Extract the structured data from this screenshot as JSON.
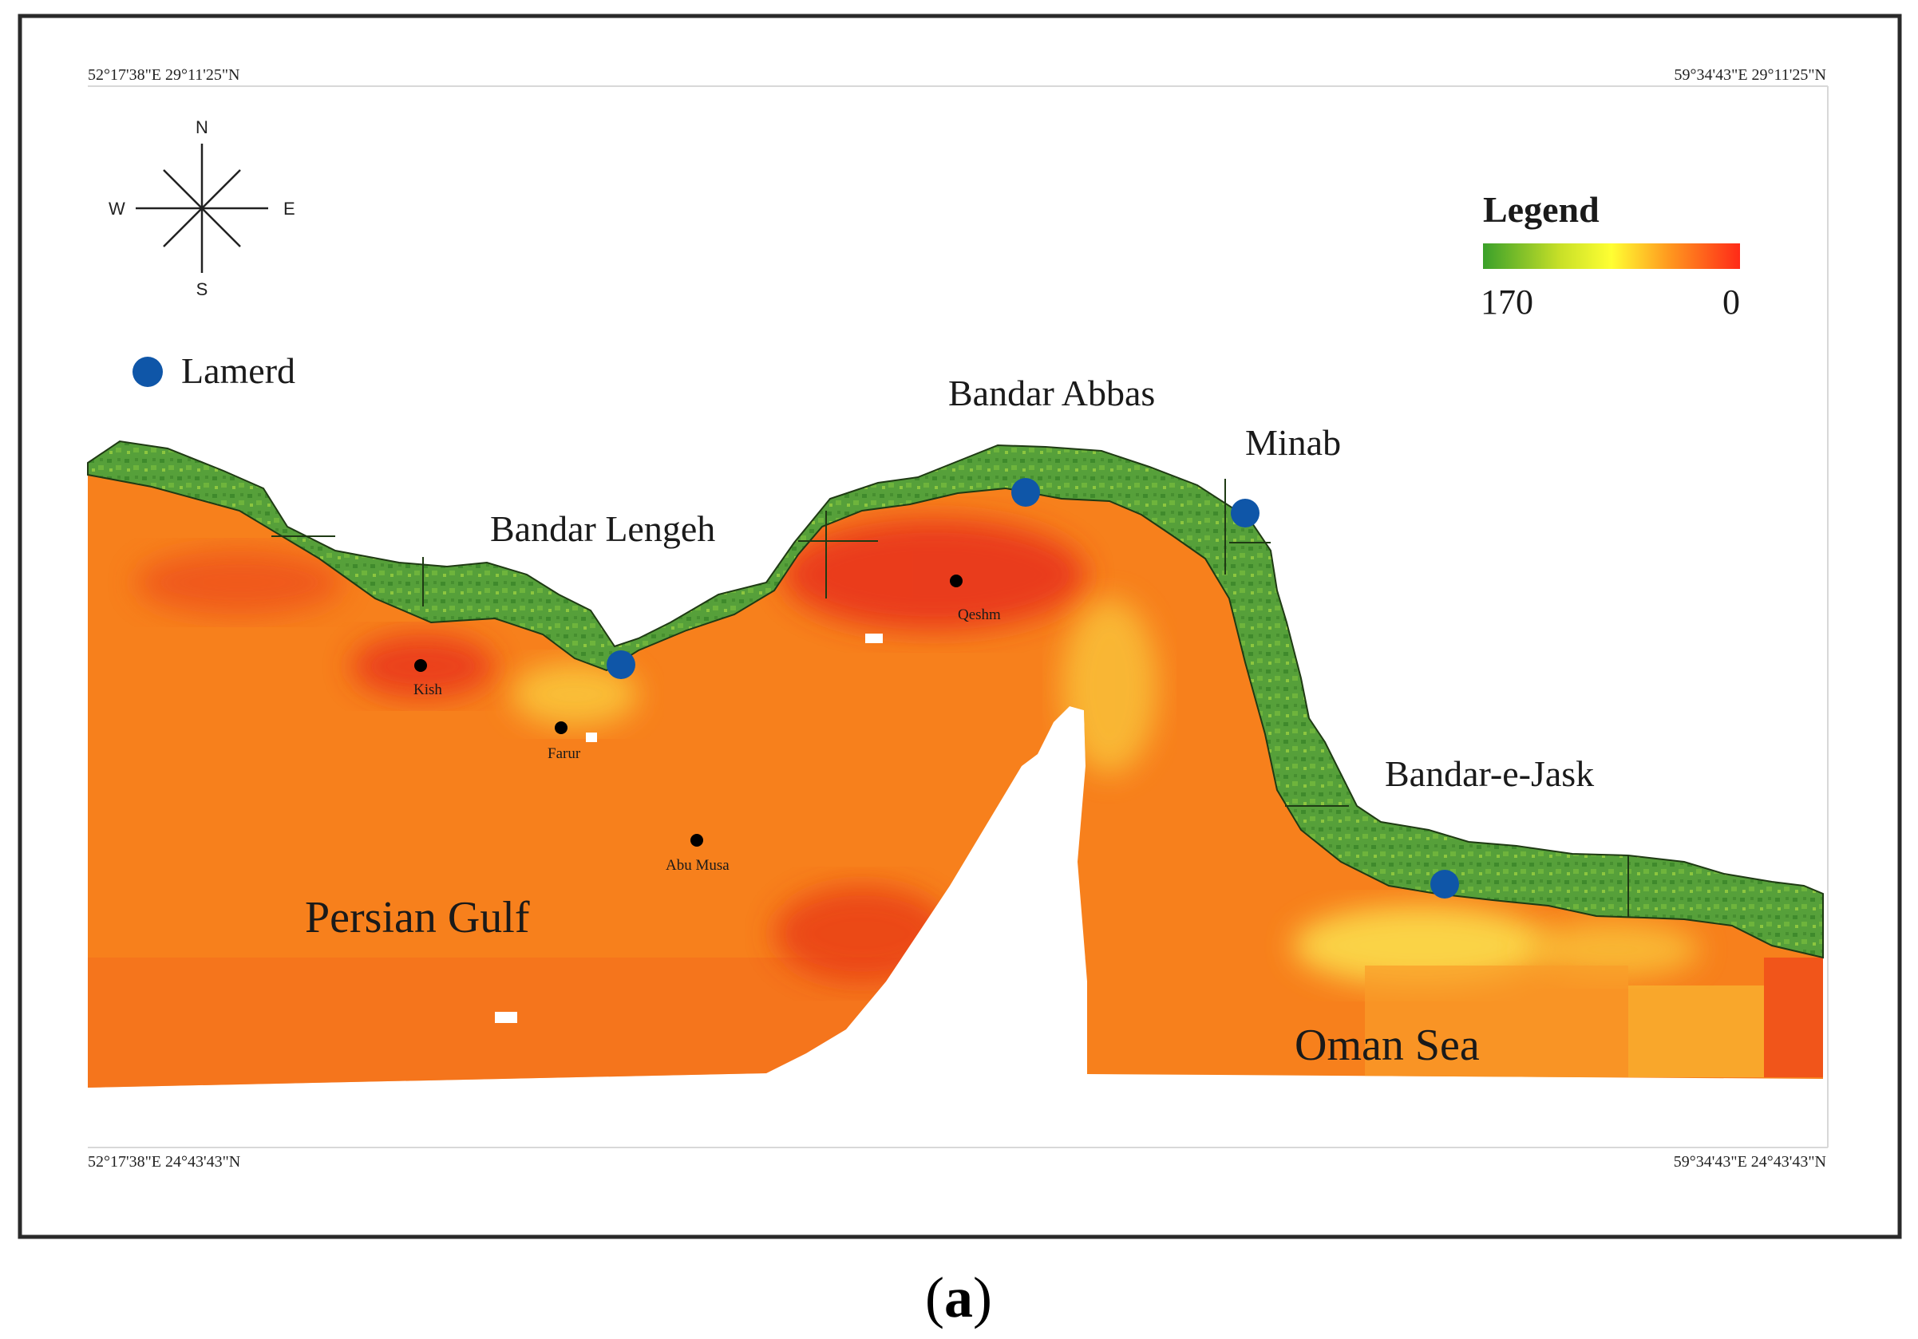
{
  "map": {
    "corners": {
      "top_left": "52°17'38\"E 29°11'25\"N",
      "top_right": "59°34'43\"E 29°11'25\"N",
      "bottom_left": "52°17'38\"E 24°43'43\"N",
      "bottom_right": "59°34'43\"E 24°43'43\"N"
    },
    "compass": {
      "north": "N",
      "south": "S",
      "east": "E",
      "west": "W"
    },
    "legend": {
      "title": "Legend",
      "max_label": "170",
      "min_label": "0",
      "gradient_colors": [
        "#3aa02a",
        "#c8e028",
        "#ffff33",
        "#ff9a1f",
        "#ff2a18"
      ]
    },
    "point_legend": {
      "label": "Lamerd",
      "color": "#0f56a8"
    },
    "stations": [
      "Bandar Abbas",
      "Minab",
      "Bandar Lengeh",
      "Bandar-e-Jask"
    ],
    "islands": [
      "Qeshm",
      "Kish",
      "Farur",
      "Abu Musa"
    ],
    "seas": [
      "Persian Gulf",
      "Oman Sea"
    ],
    "colors": {
      "land_green": "#4f9b34",
      "sea_orange": "#f7801c",
      "sea_red": "#ec3f1a",
      "sea_yellow": "#f9c43a",
      "station_blue": "#0f56a8"
    }
  },
  "caption": {
    "open": "(",
    "letter": "a",
    "close": ")"
  }
}
